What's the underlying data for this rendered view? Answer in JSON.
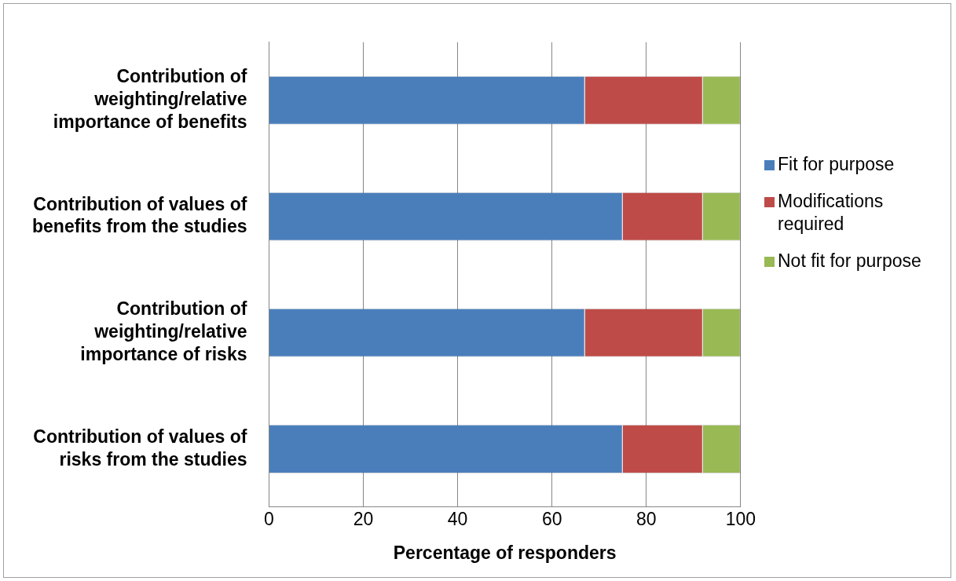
{
  "chart_data": {
    "type": "bar",
    "orientation": "horizontal",
    "stacked": true,
    "xlabel": "Percentage of responders",
    "categories": [
      "Contribution of weighting/relative importance of benefits",
      "Contribution of values of benefits from the studies",
      "Contribution of weighting/relative importance of risks",
      "Contribution of values of risks from the studies"
    ],
    "series": [
      {
        "name": "Fit for purpose",
        "color": "#4a7ebb",
        "values": [
          67,
          75,
          67,
          75
        ]
      },
      {
        "name": "Modifications required",
        "color": "#be4b48",
        "values": [
          25,
          17,
          25,
          17
        ]
      },
      {
        "name": "Not fit for purpose",
        "color": "#98b954",
        "values": [
          8,
          8,
          8,
          8
        ]
      }
    ],
    "xlim": [
      0,
      100
    ],
    "xticks": [
      0,
      20,
      40,
      60,
      80,
      100
    ],
    "grid": "x",
    "legend": "right"
  }
}
